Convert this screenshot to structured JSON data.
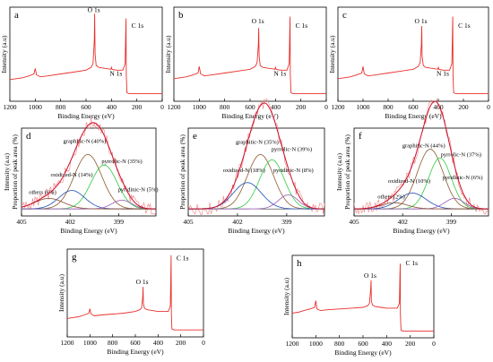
{
  "colors": {
    "survey_trace": "#e8302c",
    "fit_envelope": "#c8102e",
    "raw_data": "#f08080",
    "graphitic": "#8b5a2b",
    "pyrrolic": "#2ecc40",
    "pyridinic": "#9b59b6",
    "oxidized": "#1f4eb4",
    "others": "#8a4b2e",
    "baseline": "#000000"
  },
  "chart_data": [
    {
      "id": "a",
      "type": "line",
      "letter": "a",
      "xlabel": "Binding Energy (eV)",
      "ylabel": "Intensity (a.u)",
      "xlim": [
        1200,
        0
      ],
      "ylim": [
        0,
        100
      ],
      "x_reversed": true,
      "xticks": [
        1200,
        1000,
        800,
        600,
        400,
        200,
        0
      ],
      "annotations": [
        {
          "text": "O 1s",
          "x": 532,
          "y": 95
        },
        {
          "text": "N 1s",
          "x": 400,
          "y": 27
        },
        {
          "text": "C 1s",
          "x": 285,
          "y": 78
        }
      ],
      "series": [
        {
          "x": [
            1200,
            1150,
            1100,
            1050,
            1010,
            1000,
            990,
            960,
            900,
            800,
            700,
            600,
            560,
            545,
            535,
            532,
            529,
            520,
            500,
            450,
            405,
            400,
            395,
            360,
            310,
            292,
            287,
            285,
            283,
            278,
            260,
            200,
            150,
            100,
            50,
            0
          ],
          "y": [
            23,
            24,
            25,
            27,
            29,
            35,
            28,
            26,
            27,
            29,
            31,
            33,
            36,
            40,
            65,
            93,
            50,
            38,
            36,
            35,
            34,
            36,
            34,
            33,
            33,
            40,
            75,
            88,
            28,
            9,
            8,
            8,
            8,
            8,
            8,
            8
          ]
        }
      ]
    },
    {
      "id": "b",
      "type": "line",
      "letter": "b",
      "xlabel": "Binding Energy (eV)",
      "ylabel": "Intensity (a.u)",
      "xlim": [
        1200,
        0
      ],
      "ylim": [
        0,
        100
      ],
      "x_reversed": true,
      "xticks": [
        1200,
        1000,
        800,
        600,
        400,
        200,
        0
      ],
      "annotations": [
        {
          "text": "O 1s",
          "x": 532,
          "y": 83
        },
        {
          "text": "N 1s",
          "x": 400,
          "y": 27
        },
        {
          "text": "C 1s",
          "x": 285,
          "y": 78
        }
      ],
      "series": [
        {
          "x": [
            1200,
            1150,
            1100,
            1050,
            1010,
            1000,
            990,
            960,
            900,
            800,
            700,
            600,
            560,
            545,
            535,
            532,
            529,
            520,
            500,
            450,
            405,
            400,
            395,
            360,
            310,
            292,
            287,
            285,
            283,
            278,
            260,
            200,
            150,
            100,
            50,
            0
          ],
          "y": [
            24,
            25,
            26,
            28,
            30,
            37,
            29,
            27,
            28,
            30,
            32,
            34,
            37,
            41,
            60,
            78,
            48,
            38,
            36,
            35,
            34,
            36,
            34,
            33,
            33,
            40,
            75,
            90,
            28,
            9,
            8,
            8,
            8,
            8,
            8,
            8
          ]
        }
      ]
    },
    {
      "id": "c",
      "type": "line",
      "letter": "c",
      "xlabel": "Binding Energy (eV)",
      "ylabel": "Intensity (a.u)",
      "xlim": [
        1200,
        0
      ],
      "ylim": [
        0,
        100
      ],
      "x_reversed": true,
      "xticks": [
        1200,
        1000,
        800,
        600,
        400,
        200,
        0
      ],
      "annotations": [
        {
          "text": "O 1s",
          "x": 532,
          "y": 83
        },
        {
          "text": "N 1s",
          "x": 400,
          "y": 27
        },
        {
          "text": "C 1s",
          "x": 285,
          "y": 78
        }
      ],
      "series": [
        {
          "x": [
            1200,
            1150,
            1100,
            1050,
            1010,
            1000,
            990,
            960,
            900,
            800,
            700,
            600,
            560,
            545,
            535,
            532,
            529,
            520,
            500,
            450,
            405,
            400,
            395,
            360,
            310,
            292,
            287,
            285,
            283,
            278,
            260,
            200,
            150,
            100,
            50,
            0
          ],
          "y": [
            24,
            25,
            26,
            28,
            30,
            37,
            29,
            27,
            28,
            30,
            32,
            34,
            37,
            41,
            60,
            80,
            48,
            38,
            36,
            35,
            34,
            36,
            34,
            33,
            33,
            40,
            75,
            90,
            28,
            9,
            8,
            8,
            8,
            8,
            8,
            8
          ]
        }
      ]
    },
    {
      "id": "d",
      "type": "line",
      "letter": "d",
      "xlabel": "Binding Energy (eV)",
      "ylabel": "Intensity (a.u)",
      "ylabel2": "Proportion of peak area (%)",
      "xlim": [
        405,
        396.7
      ],
      "ylim": [
        0,
        100
      ],
      "x_reversed": true,
      "xticks": [
        405,
        402,
        399
      ],
      "baseline_y": 8,
      "components": [
        {
          "name": "graphitic",
          "label": "graphitic-N (40%)",
          "center": 400.9,
          "height": 62,
          "width": 0.85,
          "label_x": 401.1,
          "label_y": 83
        },
        {
          "name": "pyrrolic",
          "label": "pyrrolic-N (35%)",
          "center": 399.9,
          "height": 50,
          "width": 0.8,
          "label_x": 398.8,
          "label_y": 60
        },
        {
          "name": "oxidized",
          "label": "oxidized-N (14%)",
          "center": 401.9,
          "height": 21,
          "width": 0.8,
          "label_x": 401.9,
          "label_y": 45
        },
        {
          "name": "pyridinic",
          "label": "pyridinic-N (5%)",
          "center": 398.8,
          "height": 10,
          "width": 0.6,
          "label_x": 397.8,
          "label_y": 28
        },
        {
          "name": "others",
          "label": "others (6%)",
          "center": 403.3,
          "height": 12,
          "width": 0.9,
          "label_x": 403.7,
          "label_y": 25
        }
      ]
    },
    {
      "id": "e",
      "type": "line",
      "letter": "e",
      "xlabel": "Binding Energy (eV)",
      "ylabel": "Proportion of peak area (%)",
      "xlim": [
        405,
        396.7
      ],
      "ylim": [
        0,
        100
      ],
      "x_reversed": true,
      "xticks": [
        405,
        402,
        399
      ],
      "baseline_y": 8,
      "components": [
        {
          "name": "graphitic",
          "label": "graphitic-N (35%)",
          "center": 400.6,
          "height": 62,
          "width": 0.8,
          "label_x": 400.8,
          "label_y": 82
        },
        {
          "name": "pyrrolic",
          "label": "pyrrolic-N (39%)",
          "center": 399.9,
          "height": 56,
          "width": 0.75,
          "label_x": 398.7,
          "label_y": 74
        },
        {
          "name": "oxidized",
          "label": "oxidized-N (18%)",
          "center": 401.4,
          "height": 30,
          "width": 0.85,
          "label_x": 401.6,
          "label_y": 50
        },
        {
          "name": "pyridinic",
          "label": "pyridinic-N (8%)",
          "center": 398.9,
          "height": 16,
          "width": 0.6,
          "label_x": 398.6,
          "label_y": 50
        }
      ]
    },
    {
      "id": "f",
      "type": "line",
      "letter": "f",
      "xlabel": "Binding Energy (eV)",
      "ylabel": "Intensity (a.u)",
      "ylabel2": "Proportion of peak area (%)",
      "xlim": [
        405,
        396.7
      ],
      "ylim": [
        0,
        100
      ],
      "x_reversed": true,
      "xticks": [
        405,
        402,
        399
      ],
      "baseline_y": 8,
      "components": [
        {
          "name": "graphitic",
          "label": "graphitic-N (44%)",
          "center": 400.3,
          "height": 68,
          "width": 0.8,
          "label_x": 400.7,
          "label_y": 78
        },
        {
          "name": "pyrrolic",
          "label": "pyrrolic-N (37%)",
          "center": 399.7,
          "height": 58,
          "width": 0.7,
          "label_x": 398.4,
          "label_y": 68
        },
        {
          "name": "oxidized",
          "label": "oxidized-N (10%)",
          "center": 401.4,
          "height": 18,
          "width": 0.85,
          "label_x": 401.6,
          "label_y": 38
        },
        {
          "name": "pyridinic",
          "label": "pyridinic-N (6%)",
          "center": 398.8,
          "height": 12,
          "width": 0.6,
          "label_x": 398.3,
          "label_y": 42
        },
        {
          "name": "others",
          "label": "others (2%)",
          "center": 402.5,
          "height": 7,
          "width": 0.8,
          "label_x": 402.7,
          "label_y": 20
        }
      ]
    },
    {
      "id": "g",
      "type": "line",
      "letter": "g",
      "xlabel": "Binding Energy (eV)",
      "ylabel": "Intensity (a.u)",
      "xlim": [
        1200,
        0
      ],
      "ylim": [
        0,
        100
      ],
      "x_reversed": true,
      "xticks": [
        1200,
        1000,
        800,
        600,
        400,
        200,
        0
      ],
      "annotations": [
        {
          "text": "O 1s",
          "x": 532,
          "y": 60
        },
        {
          "text": "C 1s",
          "x": 285,
          "y": 87
        }
      ],
      "series": [
        {
          "x": [
            1200,
            1150,
            1100,
            1050,
            1010,
            1000,
            990,
            960,
            900,
            800,
            700,
            600,
            560,
            545,
            535,
            532,
            529,
            520,
            500,
            450,
            400,
            360,
            310,
            292,
            287,
            285,
            283,
            278,
            260,
            200,
            150,
            100,
            50,
            0
          ],
          "y": [
            21,
            22,
            23,
            25,
            27,
            32,
            26,
            24,
            25,
            26,
            27,
            29,
            31,
            33,
            45,
            57,
            38,
            33,
            31,
            30,
            29,
            29,
            29,
            35,
            70,
            93,
            26,
            9,
            8,
            8,
            8,
            8,
            8,
            8
          ]
        }
      ]
    },
    {
      "id": "h",
      "type": "line",
      "letter": "h",
      "xlabel": "Binding Energy (eV)",
      "ylabel": "Intensity (a.u)",
      "xlim": [
        1200,
        0
      ],
      "ylim": [
        0,
        100
      ],
      "x_reversed": true,
      "xticks": [
        1200,
        1000,
        800,
        600,
        400,
        200,
        0
      ],
      "annotations": [
        {
          "text": "O 1s",
          "x": 532,
          "y": 73
        },
        {
          "text": "C 1s",
          "x": 285,
          "y": 88
        }
      ],
      "series": [
        {
          "x": [
            1200,
            1150,
            1100,
            1050,
            1010,
            1000,
            990,
            960,
            900,
            800,
            700,
            600,
            560,
            545,
            535,
            532,
            529,
            520,
            500,
            450,
            400,
            360,
            310,
            292,
            287,
            285,
            283,
            278,
            260,
            200,
            150,
            100,
            50,
            0
          ],
          "y": [
            30,
            31,
            33,
            35,
            37,
            45,
            35,
            33,
            34,
            35,
            36,
            37,
            39,
            42,
            60,
            70,
            45,
            40,
            38,
            37,
            36,
            36,
            36,
            42,
            78,
            90,
            28,
            9,
            8,
            8,
            8,
            8,
            8,
            8
          ]
        }
      ]
    }
  ]
}
